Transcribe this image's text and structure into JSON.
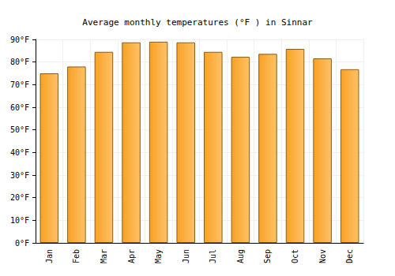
{
  "chart_data": {
    "type": "bar",
    "title": "Average monthly temperatures (°F ) in Sinnar",
    "categories": [
      "Jan",
      "Feb",
      "Mar",
      "Apr",
      "May",
      "Jun",
      "Jul",
      "Aug",
      "Sep",
      "Oct",
      "Nov",
      "Dec"
    ],
    "values": [
      75.0,
      78.0,
      84.5,
      88.7,
      89.0,
      88.7,
      84.5,
      82.3,
      83.6,
      85.8,
      81.6,
      76.8
    ],
    "color": "#ffa726",
    "ylim": [
      0,
      90
    ],
    "yticks": [
      {
        "value": 0,
        "label": "0°F"
      },
      {
        "value": 10,
        "label": "10°F"
      },
      {
        "value": 20,
        "label": "20°F"
      },
      {
        "value": 30,
        "label": "30°F"
      },
      {
        "value": 40,
        "label": "40°F"
      },
      {
        "value": 50,
        "label": "50°F"
      },
      {
        "value": 60,
        "label": "60°F"
      },
      {
        "value": 70,
        "label": "70°F"
      },
      {
        "value": 80,
        "label": "80°F"
      },
      {
        "value": 90,
        "label": "90°F"
      }
    ],
    "grid": true
  }
}
